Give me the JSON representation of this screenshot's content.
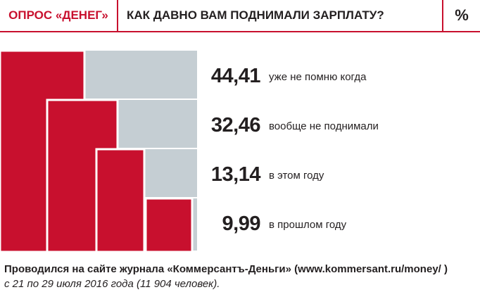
{
  "header": {
    "survey_label": "ОПРОС «ДЕНЕГ»",
    "question": "КАК ДАВНО ВАМ ПОДНИМАЛИ ЗАРПЛАТУ?",
    "unit": "%"
  },
  "colors": {
    "accent": "#c8102e",
    "bar_fill": "#c8102e",
    "bar_background": "#c5ced3",
    "text": "#231f20"
  },
  "chart_data": {
    "type": "bar",
    "unit": "%",
    "categories": [
      "уже не помню когда",
      "вообще не поднимали",
      "в этом году",
      "в прошлом году"
    ],
    "values": [
      44.41,
      32.46,
      13.14,
      9.99
    ],
    "value_labels": [
      "44,41",
      "32,46",
      "13,14",
      "9,99"
    ],
    "title": "КАК ДАВНО ВАМ ПОДНИМАЛИ ЗАРПЛАТУ?"
  },
  "footer": {
    "line1": "Проводился на сайте журнала «Коммерсантъ-Деньги» (www.kommersant.ru/money/ )",
    "line2": "с 21 по 29 июля 2016 года (11 904 человек)."
  }
}
